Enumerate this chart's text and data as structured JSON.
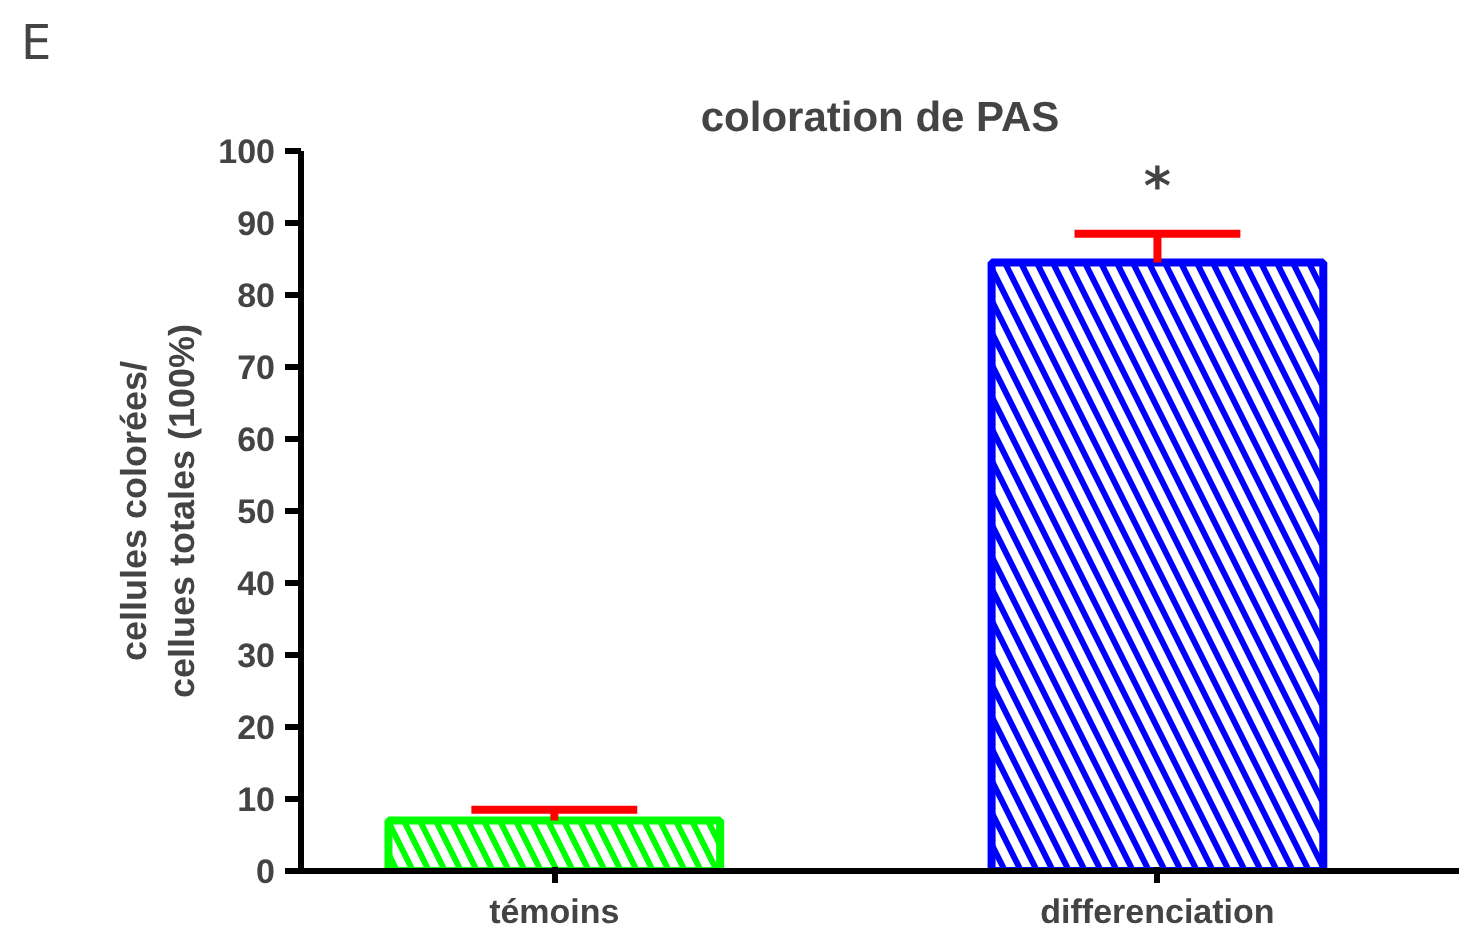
{
  "chart_data": {
    "type": "bar",
    "title": "coloration de PAS",
    "ylabel": "cellules colorées/\ncellues totales (100%)",
    "categories": [
      "témoins",
      "differenciation"
    ],
    "values": [
      7,
      84.5
    ],
    "colors": [
      "#00ff00",
      "#0000ff"
    ],
    "errors": [
      [
        7,
        8.5
      ],
      [
        84.5,
        88.5
      ]
    ],
    "ylim": [
      0,
      100
    ],
    "yticks": [
      0,
      10,
      20,
      30,
      40,
      50,
      60,
      70,
      80,
      90,
      100
    ],
    "annotations": [
      "E",
      "*"
    ]
  }
}
